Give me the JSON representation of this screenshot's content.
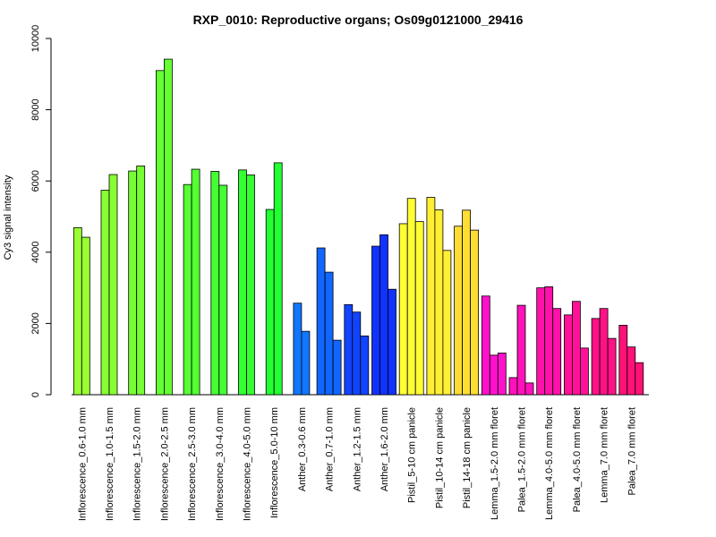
{
  "chart_data": {
    "type": "bar",
    "title": "RXP_0010: Reproductive organs; Os09g0121000_29416",
    "ylabel": "Cy3 signal intensity",
    "xlabel": "",
    "ylim": [
      0,
      10000
    ],
    "yticks": [
      0,
      2000,
      4000,
      6000,
      8000,
      10000
    ],
    "grid": false,
    "groups": [
      {
        "label": "Inflorescence_0.6-1.0 mm",
        "color": "#99ff33",
        "values": [
          4690,
          4420
        ]
      },
      {
        "label": "Inflorescence_1.0-1.5 mm",
        "color": "#88ff33",
        "values": [
          5740,
          6180
        ]
      },
      {
        "label": "Inflorescence_1.5-2.0 mm",
        "color": "#77ff33",
        "values": [
          6280,
          6420
        ]
      },
      {
        "label": "Inflorescence_2.0-2.5 mm",
        "color": "#66ff33",
        "values": [
          9100,
          9420
        ]
      },
      {
        "label": "Inflorescence_2.5-3.0 mm",
        "color": "#55ff33",
        "values": [
          5900,
          6330
        ]
      },
      {
        "label": "Inflorescence_3.0-4.0 mm",
        "color": "#44ff33",
        "values": [
          6270,
          5880
        ]
      },
      {
        "label": "Inflorescence_4.0-5.0 mm",
        "color": "#33ff33",
        "values": [
          6310,
          6170
        ]
      },
      {
        "label": "Inflorescence_5.0-10 mm",
        "color": "#22ff33",
        "values": [
          5200,
          6510
        ]
      },
      {
        "label": "Anther_0.3-0.6 mm",
        "color": "#1177ff",
        "values": [
          2570,
          1780
        ]
      },
      {
        "label": "Anther_0.7-1.0 mm",
        "color": "#1166ff",
        "values": [
          4120,
          3440,
          1530
        ]
      },
      {
        "label": "Anther_1.2-1.5 mm",
        "color": "#1144ff",
        "values": [
          2530,
          2320,
          1650
        ]
      },
      {
        "label": "Anther_1.6-2.0 mm",
        "color": "#1133ff",
        "values": [
          4170,
          4490,
          2960
        ]
      },
      {
        "label": "Pistil_5-10 cm panicle",
        "color": "#ffff33",
        "values": [
          4800,
          5510,
          4860
        ]
      },
      {
        "label": "Pistil_10-14 cm panicle",
        "color": "#ffee33",
        "values": [
          5540,
          5190,
          4050
        ]
      },
      {
        "label": "Pistil_14-18 cm panicle",
        "color": "#ffdd33",
        "values": [
          4730,
          5180,
          4620
        ]
      },
      {
        "label": "Lemma_1.5-2.0 mm floret",
        "color": "#ff11cc",
        "values": [
          2770,
          1110,
          1170
        ]
      },
      {
        "label": "Palea_1.5-2.0 mm floret",
        "color": "#ff11bb",
        "values": [
          480,
          2510,
          330
        ]
      },
      {
        "label": "Lemma_4.0-5.0 mm floret",
        "color": "#ff11aa",
        "values": [
          3000,
          3030,
          2420
        ]
      },
      {
        "label": "Palea_4.0-5.0 mm floret",
        "color": "#ff1199",
        "values": [
          2240,
          2620,
          1310
        ]
      },
      {
        "label": "Lemma_7.0 mm floret",
        "color": "#ff1188",
        "values": [
          2140,
          2420,
          1580
        ]
      },
      {
        "label": "Palea_7.0 mm floret",
        "color": "#ff1177",
        "values": [
          1950,
          1340,
          900
        ]
      }
    ]
  }
}
